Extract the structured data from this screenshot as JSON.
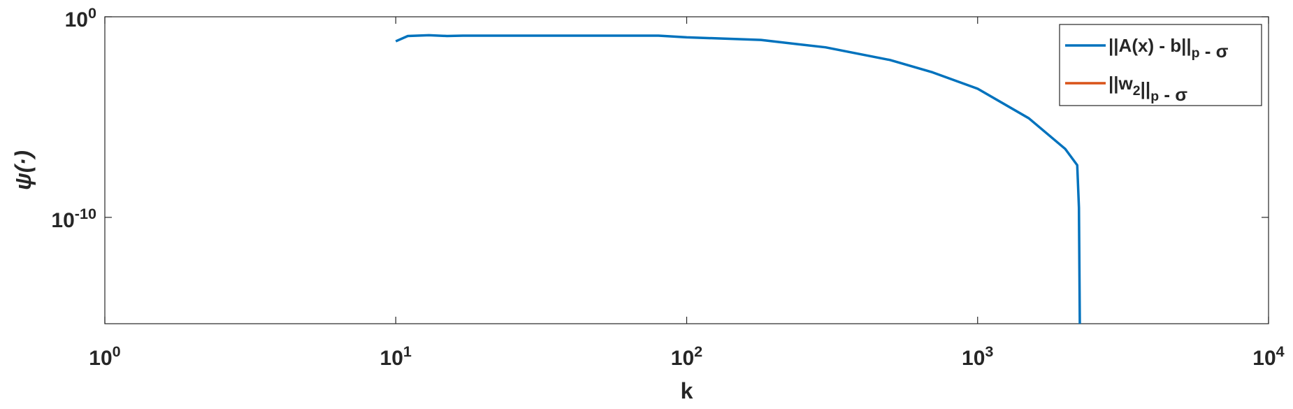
{
  "chart_data": {
    "type": "line",
    "x_label": "k",
    "y_label": "ψ(·)",
    "x": [
      10,
      11,
      13,
      15,
      17,
      20,
      40,
      80,
      100,
      180,
      300,
      500,
      700,
      1000,
      1500,
      2000,
      2200,
      2230,
      2250
    ],
    "series": [
      {
        "name": "||A(x) - b||_p - σ",
        "color": "#0072bd",
        "values": [
          0.06,
          0.11,
          0.12,
          0.11,
          0.115,
          0.115,
          0.115,
          0.115,
          0.095,
          0.07,
          0.03,
          0.007,
          0.0017,
          0.00026,
          8.7e-06,
          2.6e-07,
          4e-08,
          3e-10,
          1e-17
        ]
      },
      {
        "name": "||w_2||_p - σ",
        "color": "#d95319",
        "values": [
          null,
          null,
          null,
          null,
          null,
          null,
          null,
          null,
          null,
          null,
          null,
          null,
          null,
          null,
          null,
          null,
          null,
          null,
          null
        ]
      }
    ],
    "xscale": "log",
    "yscale": "log",
    "xlim": [
      1,
      10000
    ],
    "xticks": [
      {
        "value": 1,
        "label": "10^0"
      },
      {
        "value": 10,
        "label": "10^1"
      },
      {
        "value": 100,
        "label": "10^2"
      },
      {
        "value": 1000,
        "label": "10^3"
      },
      {
        "value": 10000,
        "label": "10^4"
      }
    ],
    "ylim": [
      5e-16,
      1
    ],
    "yticks": [
      {
        "value": 1e-10,
        "label": "10^-10"
      },
      {
        "value": 1,
        "label": "10^0"
      }
    ],
    "legend": "top-right"
  }
}
